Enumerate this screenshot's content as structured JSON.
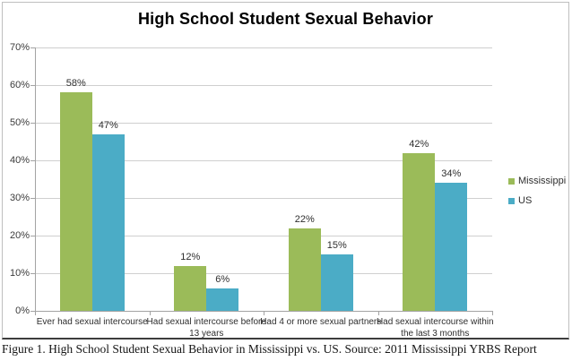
{
  "title": "High School Student Sexual Behavior",
  "caption": "Figure 1. High School Student Sexual Behavior in Mississippi vs. US. Source: 2011 Mississippi YRBS Report",
  "colors": {
    "mississippi_green": "#9BBB59",
    "us_blue": "#4BACC6",
    "gridline": "#CFCFCF",
    "axis": "#A3A3A3",
    "label_text": "#2e2e2e",
    "frame_border": "#BFBFBF",
    "bottom_rule": "#3d3d3d"
  },
  "chart_data": {
    "type": "bar",
    "title": "High School Student Sexual Behavior",
    "categories": [
      "Ever had sexual intercourse",
      "Had sexual intercourse before 13 years",
      "Had 4 or more sexual partners",
      "Had sexual intercourse within the last 3 months"
    ],
    "series": [
      {
        "name": "Mississippi",
        "color": "#9BBB59",
        "values": [
          58,
          12,
          22,
          42
        ]
      },
      {
        "name": "US",
        "color": "#4BACC6",
        "values": [
          47,
          6,
          15,
          34
        ]
      }
    ],
    "data_label_suffix": "%",
    "xlabel": "",
    "ylabel": "",
    "ylim": [
      0,
      70
    ],
    "ytick_step": 10,
    "ytick_labels": [
      "0%",
      "10%",
      "20%",
      "30%",
      "40%",
      "50%",
      "60%",
      "70%"
    ],
    "grid": true,
    "legend_position": "right",
    "legend_entries": [
      "Mississippi",
      "US"
    ]
  }
}
